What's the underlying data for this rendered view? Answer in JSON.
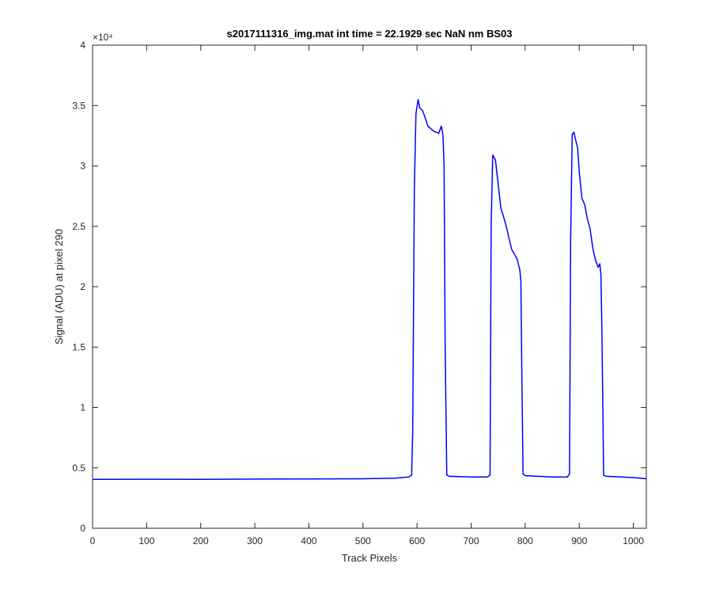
{
  "chart_data": {
    "type": "line",
    "title": "s2017111316_img.mat int time = 22.1929 sec  NaN nm BS03",
    "xlabel": "Track Pixels",
    "ylabel": "Signal (ADU) at pixel 290",
    "xlim": [
      0,
      1024
    ],
    "ylim": [
      0,
      40000
    ],
    "xticks": [
      0,
      100,
      200,
      300,
      400,
      500,
      600,
      700,
      800,
      900,
      1000
    ],
    "xtick_labels": [
      "0",
      "100",
      "200",
      "300",
      "400",
      "500",
      "600",
      "700",
      "800",
      "900",
      "1000"
    ],
    "yticks": [
      0,
      5000,
      10000,
      15000,
      20000,
      25000,
      30000,
      35000,
      40000
    ],
    "ytick_labels": [
      "0",
      "0.5",
      "1",
      "1.5",
      "2",
      "2.5",
      "3",
      "3.5",
      "4"
    ],
    "y_exponent_label": "×10⁴",
    "grid": false,
    "line_color": "#0000ff",
    "series": [
      {
        "x": [
          0,
          100,
          200,
          300,
          400,
          500,
          560,
          585,
          590,
          592,
          595,
          598,
          602,
          605,
          610,
          615,
          620,
          625,
          630,
          635,
          640,
          645,
          648,
          650,
          652,
          655,
          660,
          700,
          730,
          735,
          737,
          740,
          745,
          750,
          755,
          760,
          765,
          770,
          775,
          780,
          785,
          790,
          792,
          794,
          796,
          800,
          850,
          878,
          882,
          884,
          887,
          890,
          893,
          897,
          900,
          905,
          910,
          915,
          920,
          925,
          930,
          935,
          938,
          940,
          942,
          945,
          950,
          1000,
          1024
        ],
        "y": [
          4050,
          4060,
          4050,
          4070,
          4080,
          4100,
          4150,
          4250,
          4400,
          8000,
          28000,
          34300,
          35500,
          34800,
          34600,
          34000,
          33300,
          33100,
          32900,
          32800,
          32700,
          33300,
          32500,
          30000,
          15000,
          4400,
          4300,
          4250,
          4250,
          4400,
          25000,
          30900,
          30500,
          28500,
          26500,
          25800,
          25000,
          24000,
          23100,
          22700,
          22300,
          21400,
          20500,
          12000,
          4500,
          4350,
          4250,
          4250,
          4500,
          24000,
          32600,
          32800,
          32200,
          31500,
          29500,
          27300,
          26800,
          25600,
          24800,
          23200,
          22200,
          21600,
          21900,
          21000,
          16000,
          4400,
          4300,
          4200,
          4100
        ]
      }
    ]
  }
}
